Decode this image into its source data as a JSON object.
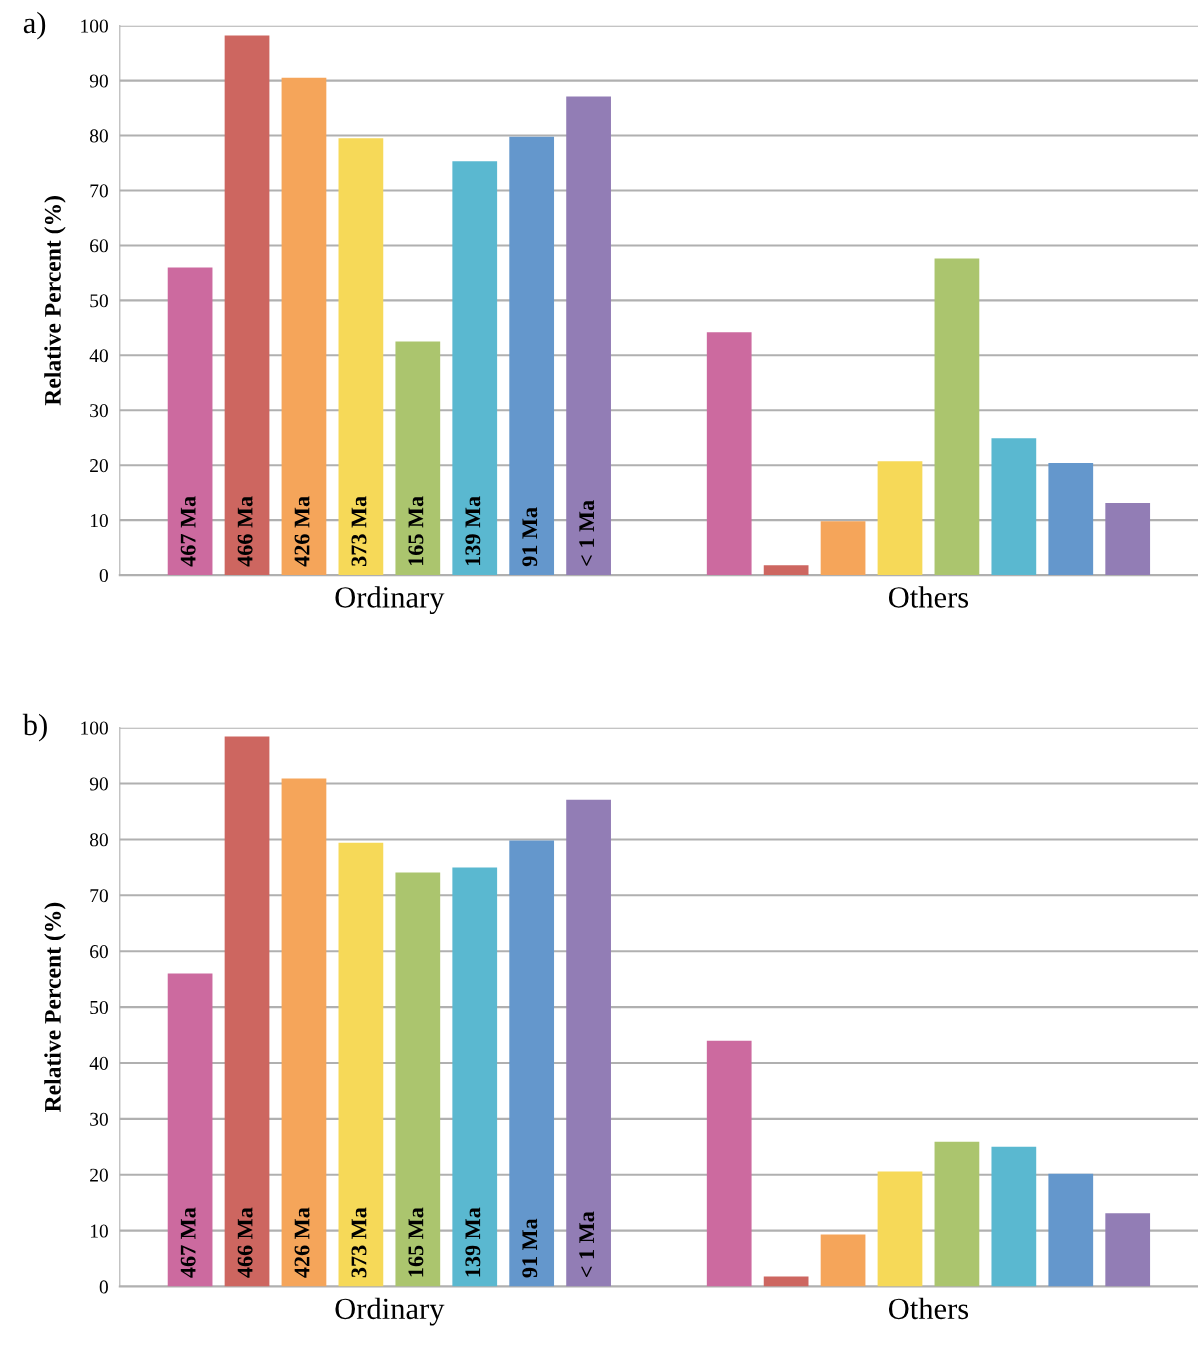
{
  "chart_data": [
    {
      "type": "bar",
      "title": "a)",
      "ylabel": "Relative Percent (%)",
      "categories": [
        "Ordinary",
        "Others"
      ],
      "ylim": [
        0,
        100
      ],
      "yticks": [
        0,
        10,
        20,
        30,
        40,
        50,
        60,
        70,
        80,
        90,
        100
      ],
      "grid": "y",
      "legend": false,
      "series": [
        {
          "name": "467 Ma",
          "color": "#cc6a9f",
          "values": [
            56.0,
            44.2
          ]
        },
        {
          "name": "466 Ma",
          "color": "#cd6660",
          "values": [
            98.2,
            1.8
          ]
        },
        {
          "name": "426 Ma",
          "color": "#f5a55a",
          "values": [
            90.5,
            9.8
          ]
        },
        {
          "name": "373 Ma",
          "color": "#f6d958",
          "values": [
            79.5,
            20.7
          ]
        },
        {
          "name": "165 Ma",
          "color": "#abc56e",
          "values": [
            42.5,
            57.6
          ]
        },
        {
          "name": "139 Ma",
          "color": "#5ab8d0",
          "values": [
            75.3,
            24.9
          ]
        },
        {
          "name": "91 Ma",
          "color": "#6497cc",
          "values": [
            79.8,
            20.4
          ]
        },
        {
          "name": "< 1 Ma",
          "color": "#927db5",
          "values": [
            87.1,
            13.1
          ]
        }
      ]
    },
    {
      "type": "bar",
      "title": "b)",
      "ylabel": "Relative Percent (%)",
      "categories": [
        "Ordinary",
        "Others"
      ],
      "ylim": [
        0,
        100
      ],
      "yticks": [
        0,
        10,
        20,
        30,
        40,
        50,
        60,
        70,
        80,
        90,
        100
      ],
      "grid": "y",
      "legend": false,
      "series": [
        {
          "name": "467 Ma",
          "color": "#cc6a9f",
          "values": [
            56.0,
            44.0
          ]
        },
        {
          "name": "466 Ma",
          "color": "#cd6660",
          "values": [
            98.4,
            1.8
          ]
        },
        {
          "name": "426 Ma",
          "color": "#f5a55a",
          "values": [
            90.9,
            9.3
          ]
        },
        {
          "name": "373 Ma",
          "color": "#f6d958",
          "values": [
            79.4,
            20.6
          ]
        },
        {
          "name": "165 Ma",
          "color": "#abc56e",
          "values": [
            74.1,
            25.9
          ]
        },
        {
          "name": "139 Ma",
          "color": "#5ab8d0",
          "values": [
            75.0,
            25.0
          ]
        },
        {
          "name": "91 Ma",
          "color": "#6497cc",
          "values": [
            79.8,
            20.2
          ]
        },
        {
          "name": "< 1 Ma",
          "color": "#927db5",
          "values": [
            87.1,
            13.1
          ]
        }
      ]
    }
  ]
}
